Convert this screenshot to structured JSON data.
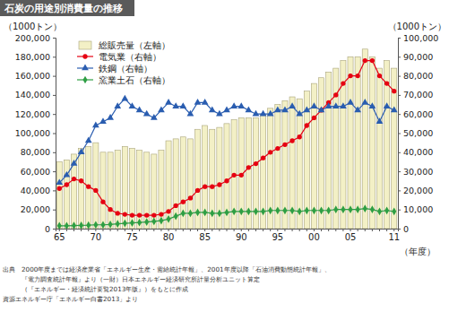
{
  "chart_data": {
    "type": "bar",
    "title": "石炭の用途別消費量の推移",
    "ylabel": "（1000トン）",
    "y2label": "（1000トン）",
    "xlabel": "（年度）",
    "notes": [
      "出典　2000年度までは経済産業省「エネルギー生産・需給統計年報」、2001年度以降「石油消費動態統計年報」、",
      "　　　『電力調査統計年報』より（一財）日本エネルギー経済研究所計量分析ユニット算定",
      "　　　（『エネルギー・経済統計要覧2013年版』）をもとに作成",
      "資源エネルギー庁「エネルギー白書2013」より"
    ],
    "categories": [
      "65",
      null,
      null,
      null,
      null,
      "70",
      null,
      null,
      null,
      null,
      "75",
      null,
      null,
      null,
      null,
      "80",
      null,
      null,
      null,
      null,
      "85",
      null,
      null,
      null,
      null,
      "90",
      null,
      null,
      null,
      null,
      "95",
      null,
      null,
      null,
      null,
      "00",
      null,
      null,
      null,
      null,
      "05",
      null,
      null,
      null,
      null,
      null,
      "11"
    ],
    "ylim": [
      0,
      200000
    ],
    "yticks": [
      0,
      {
        "value": 20000,
        "label": "20,000"
      },
      {
        "value": 40000,
        "label": "40,000"
      },
      {
        "value": 60000,
        "label": "60,000"
      },
      {
        "value": 80000,
        "label": "80,000"
      },
      {
        "value": 100000,
        "label": "100,000"
      },
      {
        "value": 120000,
        "label": "120,000"
      },
      {
        "value": 140000,
        "label": "140,000"
      },
      {
        "value": 160000,
        "label": "160,000"
      },
      {
        "value": 180000,
        "label": "180,000"
      },
      {
        "value": 200000,
        "label": "200,000"
      }
    ],
    "y2lim": [
      0,
      100000
    ],
    "y2ticks": [
      0,
      {
        "value": 10000,
        "label": "10,000"
      },
      {
        "value": 20000,
        "label": "20,000"
      },
      {
        "value": 30000,
        "label": "30,000"
      },
      {
        "value": 40000,
        "label": "40,000"
      },
      {
        "value": 50000,
        "label": "50,000"
      },
      {
        "value": 60000,
        "label": "60,000"
      },
      {
        "value": 70000,
        "label": "70,000"
      },
      {
        "value": 80000,
        "label": "80,000"
      },
      {
        "value": 90000,
        "label": "90,000"
      },
      {
        "value": 100000,
        "label": "100,000"
      }
    ],
    "grid": false,
    "legend": "upper left",
    "series": [
      {
        "name": "総販売量（左軸）",
        "type": "bar",
        "color": "#f3f0c6",
        "values": [
          70000,
          72000,
          78000,
          84000,
          86000,
          90000,
          80000,
          80000,
          82000,
          86000,
          84000,
          82000,
          80000,
          78000,
          82000,
          92000,
          94000,
          96000,
          94000,
          104000,
          108000,
          104000,
          106000,
          110000,
          114000,
          116000,
          116000,
          116000,
          120000,
          126000,
          130000,
          134000,
          138000,
          136000,
          144000,
          152000,
          158000,
          164000,
          168000,
          176000,
          180000,
          180000,
          188000,
          180000,
          168000,
          176000,
          168000
        ]
      },
      {
        "name": "電気業（右軸）",
        "type": "line",
        "axis": "y2",
        "color": "#e60012",
        "marker": "circle",
        "values": [
          21000,
          23000,
          26000,
          25000,
          22000,
          20000,
          14000,
          10000,
          8000,
          7500,
          7000,
          7000,
          7000,
          7000,
          7500,
          9000,
          12000,
          14000,
          16000,
          20000,
          22000,
          22000,
          23000,
          25000,
          28000,
          28000,
          32000,
          34000,
          37000,
          40000,
          42000,
          44000,
          46000,
          48000,
          54000,
          58000,
          62000,
          66000,
          70000,
          76000,
          80000,
          80000,
          88000,
          88000,
          80000,
          76000,
          72000
        ]
      },
      {
        "name": "鉄鋼（右軸）",
        "type": "line",
        "axis": "y2",
        "color": "#2a5db0",
        "marker": "triangle",
        "values": [
          24000,
          28000,
          34000,
          40000,
          46000,
          54000,
          56000,
          58000,
          64000,
          68000,
          64000,
          62000,
          60000,
          58000,
          62000,
          66000,
          64000,
          64000,
          60000,
          66000,
          66000,
          62000,
          60000,
          62000,
          64000,
          64000,
          62000,
          60000,
          60000,
          60000,
          62000,
          62000,
          64000,
          60000,
          62000,
          64000,
          62000,
          64000,
          64000,
          64000,
          66000,
          62000,
          66000,
          64000,
          56000,
          64000,
          62000
        ]
      },
      {
        "name": "窯業土石（右軸）",
        "type": "line",
        "axis": "y2",
        "color": "#2e9e44",
        "marker": "diamond",
        "values": [
          1500,
          1500,
          1600,
          1700,
          1800,
          2000,
          2000,
          2200,
          2500,
          2800,
          3000,
          3200,
          3500,
          3800,
          4200,
          5000,
          6500,
          8000,
          8000,
          8500,
          8500,
          8000,
          8000,
          8500,
          9000,
          9000,
          9000,
          9000,
          9000,
          9500,
          9500,
          9500,
          9500,
          9000,
          9500,
          9500,
          9500,
          9500,
          10000,
          10000,
          10000,
          10000,
          10500,
          10000,
          9000,
          9500,
          9000
        ]
      }
    ]
  }
}
